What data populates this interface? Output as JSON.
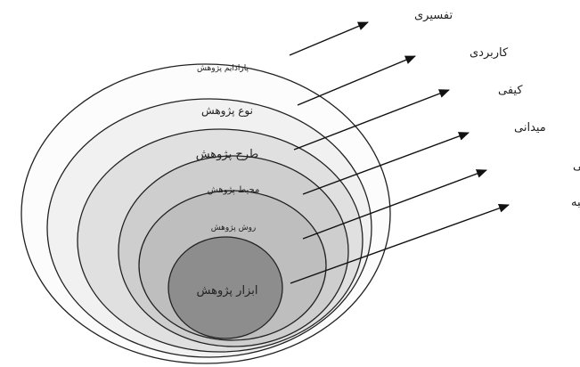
{
  "layers": [
    {
      "label": "پارادایم پژوهش",
      "fill": "#fcfcfc"
    },
    {
      "label": "نوع پژوهش",
      "fill": "#f1f1f1"
    },
    {
      "label": "طرح پژوهش",
      "fill": "#e0e0e0"
    },
    {
      "label": "محیط پژوهش",
      "fill": "#cecece"
    },
    {
      "label": "روش پژوهش",
      "fill": "#bebebe"
    },
    {
      "label": "ابزار پژوهش",
      "fill": "#8d8d8d"
    }
  ],
  "side_labels": [
    "تفسیری",
    "کاربردی",
    "کیفی",
    "میدانی",
    "پدیدارشناسی",
    "مصاحبه"
  ]
}
